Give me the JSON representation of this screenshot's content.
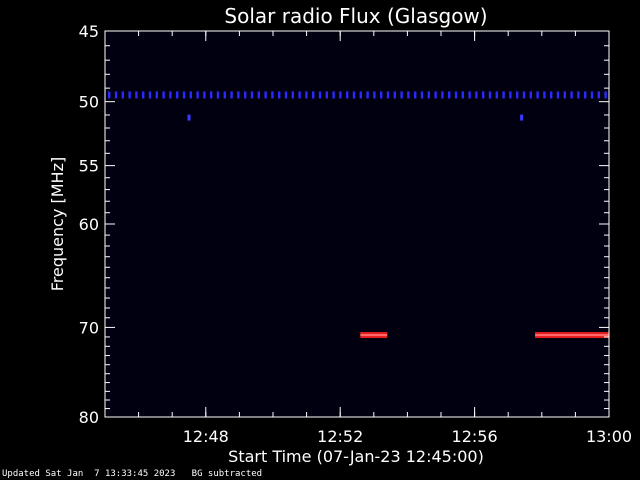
{
  "chart_data": {
    "type": "heatmap",
    "title": "Solar radio Flux (Glasgow)",
    "xlabel": "Start Time (07-Jan-23 12:45:00)",
    "ylabel": "Frequency [MHz]",
    "x_range": [
      "12:45",
      "13:00"
    ],
    "x_ticks": [
      "12:48",
      "12:52",
      "12:56",
      "13:00"
    ],
    "y_range": [
      45,
      80
    ],
    "y_scale": "log",
    "y_ticks": [
      45,
      50,
      55,
      60,
      70,
      80
    ],
    "background_color": "#000010",
    "features": [
      {
        "kind": "interference-band",
        "freq_mhz": 49.5,
        "start": "12:45",
        "end": "13:00",
        "color": "#2a2aff"
      },
      {
        "kind": "spot",
        "freq_mhz": 51.2,
        "time": "12:47.5",
        "color": "#3a3aff"
      },
      {
        "kind": "spot",
        "freq_mhz": 51.2,
        "time": "12:57.4",
        "color": "#3a3aff"
      },
      {
        "kind": "emission",
        "freq_mhz": 70.8,
        "start": "12:52.6",
        "end": "12:53.4",
        "color": "#ff2020"
      },
      {
        "kind": "emission",
        "freq_mhz": 70.8,
        "start": "12:57.8",
        "end": "13:00",
        "color": "#ff2020"
      }
    ]
  },
  "footer": {
    "updated": "Updated Sat Jan  7 13:33:45 2023",
    "note": "BG subtracted"
  }
}
